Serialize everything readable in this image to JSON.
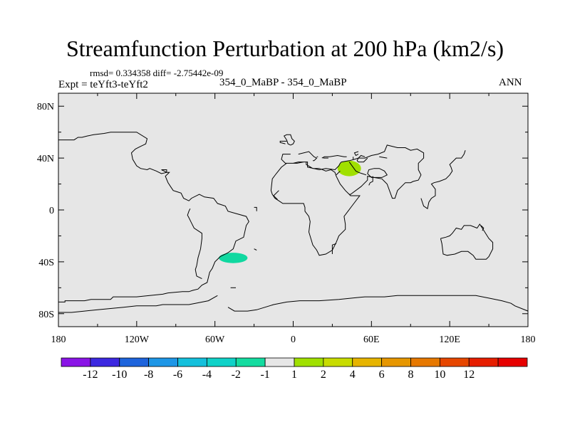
{
  "header": {
    "title": "Streamfunction Perturbation at 200 hPa (km2/s)",
    "stats": "rmsd= 0.334358 diff= -2.75442e-09",
    "expt": "Expt = teYft3-teYft2",
    "case": "354_0_MaBP - 354_0_MaBP",
    "season": "ANN"
  },
  "chart_data": {
    "type": "heatmap",
    "title": "Streamfunction Perturbation at 200 hPa (km2/s)",
    "xlabel": "",
    "ylabel": "",
    "xlim": [
      -180,
      180
    ],
    "ylim": [
      -90,
      90
    ],
    "x_ticks": [
      {
        "value": -180,
        "label": "180"
      },
      {
        "value": -120,
        "label": "120W"
      },
      {
        "value": -60,
        "label": "60W"
      },
      {
        "value": 0,
        "label": "0"
      },
      {
        "value": 60,
        "label": "60E"
      },
      {
        "value": 120,
        "label": "120E"
      },
      {
        "value": 180,
        "label": "180"
      }
    ],
    "y_ticks": [
      {
        "value": 80,
        "label": "80N"
      },
      {
        "value": 40,
        "label": "40N"
      },
      {
        "value": 0,
        "label": "0"
      },
      {
        "value": -40,
        "label": "40S"
      },
      {
        "value": -80,
        "label": "80S"
      }
    ],
    "background_color": "#e6e6e6",
    "anomalies": [
      {
        "name": "positive-anomaly-near-east",
        "lon": 43,
        "lat": 32,
        "lon_halfwidth": 9,
        "lat_halfwidth": 6,
        "level": 2,
        "color": "#a0e000"
      },
      {
        "name": "negative-anomaly-south-atlantic",
        "lon": -46,
        "lat": -37,
        "lon_halfwidth": 11,
        "lat_halfwidth": 4,
        "level": -1.5,
        "color": "#10d8a0"
      }
    ],
    "colorbar": {
      "colors": [
        "#8a14e6",
        "#3c28e0",
        "#1e64dc",
        "#1e96e6",
        "#14c0dc",
        "#10d2c8",
        "#14dca0",
        "#e6e6e6",
        "#a0e000",
        "#c8dc00",
        "#e6b400",
        "#e69600",
        "#e67800",
        "#e64600",
        "#e61e00",
        "#e60000"
      ],
      "labels": [
        "-12",
        "-10",
        "-8",
        "-6",
        "-4",
        "-2",
        "-1",
        "1",
        "2",
        "4",
        "6",
        "8",
        "10",
        "12"
      ]
    },
    "coastlines": [
      [
        [
          -180,
          -71
        ],
        [
          -175,
          -71
        ],
        [
          -175,
          -70
        ],
        [
          -160,
          -70
        ],
        [
          -155,
          -69
        ],
        [
          -140,
          -69
        ],
        [
          -138,
          -67
        ],
        [
          -120,
          -67
        ],
        [
          -110,
          -66
        ],
        [
          -100,
          -65
        ],
        [
          -96,
          -64
        ],
        [
          -85,
          -63
        ],
        [
          -80,
          -63
        ],
        [
          -77,
          -62
        ],
        [
          -73,
          -61
        ],
        [
          -70,
          -58
        ],
        [
          -66,
          -56
        ],
        [
          -64,
          -48
        ],
        [
          -62,
          -45
        ],
        [
          -60,
          -40
        ],
        [
          -56,
          -36
        ],
        [
          -50,
          -33
        ],
        [
          -46,
          -30
        ],
        [
          -44,
          -24
        ],
        [
          -38,
          -21
        ],
        [
          -36,
          -12
        ],
        [
          -34,
          -9
        ],
        [
          -36,
          -5
        ],
        [
          -43,
          -3
        ],
        [
          -50,
          -1
        ],
        [
          -52,
          3
        ],
        [
          -58,
          5
        ],
        [
          -61,
          9
        ],
        [
          -68,
          10
        ],
        [
          -72,
          12
        ],
        [
          -78,
          9
        ],
        [
          -80,
          7
        ],
        [
          -84,
          9
        ],
        [
          -86,
          13
        ],
        [
          -89,
          14
        ],
        [
          -92,
          15
        ],
        [
          -94,
          18
        ],
        [
          -96,
          21
        ],
        [
          -98,
          26
        ],
        [
          -95,
          29
        ],
        [
          -97,
          29
        ],
        [
          -99,
          30
        ],
        [
          -101,
          31
        ],
        [
          -97,
          31
        ],
        [
          -97,
          29
        ],
        [
          -101,
          28
        ],
        [
          -105,
          30
        ],
        [
          -110,
          32
        ],
        [
          -112,
          31
        ],
        [
          -117,
          32
        ],
        [
          -120,
          34
        ],
        [
          -123,
          39
        ],
        [
          -124,
          44
        ],
        [
          -121,
          47
        ],
        [
          -117,
          49
        ],
        [
          -115,
          50
        ],
        [
          -113,
          51
        ],
        [
          -112,
          55
        ],
        [
          -120,
          60
        ],
        [
          -140,
          60
        ],
        [
          -145,
          59
        ],
        [
          -153,
          58
        ],
        [
          -158,
          57
        ],
        [
          -162,
          56
        ],
        [
          -165,
          56
        ],
        [
          -168,
          54
        ],
        [
          -180,
          54
        ]
      ],
      [
        [
          -2,
          43
        ],
        [
          -8,
          43
        ],
        [
          -9,
          39
        ],
        [
          -6,
          36
        ],
        [
          -2,
          36
        ],
        [
          3,
          36
        ],
        [
          8,
          37
        ],
        [
          11,
          37
        ],
        [
          11,
          33
        ],
        [
          20,
          31
        ],
        [
          25,
          32
        ],
        [
          32,
          31
        ],
        [
          35,
          34
        ],
        [
          36,
          36
        ],
        [
          37,
          37
        ],
        [
          43,
          38
        ],
        [
          47,
          39
        ],
        [
          50,
          40
        ],
        [
          55,
          40
        ],
        [
          60,
          42
        ],
        [
          65,
          43
        ],
        [
          70,
          45
        ],
        [
          72,
          50
        ],
        [
          80,
          48
        ],
        [
          86,
          48
        ],
        [
          90,
          46
        ],
        [
          95,
          47
        ],
        [
          100,
          44
        ],
        [
          100,
          40
        ],
        [
          96,
          36
        ],
        [
          96,
          31
        ],
        [
          98,
          27
        ],
        [
          96,
          23
        ],
        [
          92,
          22
        ],
        [
          90,
          21
        ],
        [
          86,
          21
        ],
        [
          83,
          18
        ],
        [
          80,
          15
        ],
        [
          78,
          9
        ],
        [
          76,
          9
        ],
        [
          72,
          20
        ],
        [
          68,
          24
        ],
        [
          62,
          25
        ],
        [
          57,
          26
        ],
        [
          57,
          23
        ],
        [
          52,
          18
        ],
        [
          44,
          12
        ],
        [
          43,
          12
        ],
        [
          40,
          15
        ],
        [
          36,
          20
        ],
        [
          33,
          26
        ],
        [
          32,
          29
        ],
        [
          29,
          31
        ],
        [
          25,
          30
        ],
        [
          20,
          32
        ],
        [
          15,
          32
        ],
        [
          10,
          35
        ],
        [
          10,
          37
        ],
        [
          8,
          37
        ],
        [
          4,
          37
        ],
        [
          0,
          36
        ],
        [
          -5,
          36
        ],
        [
          -9,
          33
        ],
        [
          -13,
          28
        ],
        [
          -16,
          24
        ],
        [
          -17,
          15
        ],
        [
          -16,
          12
        ],
        [
          -14,
          9
        ],
        [
          -11,
          7
        ],
        [
          -8,
          5
        ],
        [
          -3,
          5
        ],
        [
          4,
          5
        ],
        [
          8,
          5
        ],
        [
          9,
          2
        ],
        [
          9,
          -1
        ],
        [
          12,
          -5
        ],
        [
          13,
          -9
        ],
        [
          12,
          -17
        ],
        [
          15,
          -27
        ],
        [
          18,
          -31
        ],
        [
          20,
          -35
        ],
        [
          25,
          -34
        ],
        [
          30,
          -31
        ],
        [
          33,
          -25
        ],
        [
          35,
          -20
        ],
        [
          40,
          -15
        ],
        [
          40,
          -11
        ],
        [
          39,
          -5
        ],
        [
          42,
          -1
        ],
        [
          45,
          3
        ],
        [
          51,
          11
        ],
        [
          44,
          11
        ],
        [
          43,
          12
        ]
      ],
      [
        [
          98,
          9
        ],
        [
          100,
          3
        ],
        [
          103,
          1
        ],
        [
          104,
          6
        ],
        [
          106,
          9
        ],
        [
          109,
          11
        ],
        [
          109,
          16
        ],
        [
          106,
          20
        ],
        [
          108,
          21
        ],
        [
          112,
          22
        ],
        [
          117,
          24
        ],
        [
          120,
          27
        ],
        [
          122,
          30
        ],
        [
          121,
          33
        ],
        [
          120,
          35
        ],
        [
          122,
          37
        ],
        [
          125,
          40
        ],
        [
          129,
          40
        ],
        [
          131,
          43
        ],
        [
          132,
          46
        ]
      ],
      [
        [
          113,
          -22
        ],
        [
          114,
          -26
        ],
        [
          115,
          -34
        ],
        [
          118,
          -35
        ],
        [
          124,
          -34
        ],
        [
          129,
          -32
        ],
        [
          134,
          -32
        ],
        [
          138,
          -35
        ],
        [
          140,
          -38
        ],
        [
          145,
          -38
        ],
        [
          148,
          -38
        ],
        [
          150,
          -36
        ],
        [
          153,
          -30
        ],
        [
          153,
          -25
        ],
        [
          150,
          -22
        ],
        [
          145,
          -14
        ],
        [
          143,
          -11
        ],
        [
          141,
          -14
        ],
        [
          136,
          -12
        ],
        [
          131,
          -12
        ],
        [
          129,
          -15
        ],
        [
          125,
          -14
        ],
        [
          122,
          -18
        ],
        [
          120,
          -20
        ],
        [
          117,
          -21
        ],
        [
          113,
          -22
        ]
      ],
      [
        [
          -2,
          50
        ],
        [
          0,
          51
        ],
        [
          1,
          53
        ],
        [
          -1,
          55
        ],
        [
          -2,
          58
        ],
        [
          -5,
          58
        ],
        [
          -7,
          57
        ],
        [
          -5,
          54
        ],
        [
          -4,
          51
        ],
        [
          -2,
          50
        ]
      ],
      [
        [
          62,
          32
        ],
        [
          58,
          31
        ],
        [
          57,
          28
        ],
        [
          60,
          25
        ],
        [
          68,
          25
        ],
        [
          72,
          27
        ],
        [
          70,
          30
        ],
        [
          66,
          32
        ],
        [
          62,
          32
        ]
      ],
      [
        [
          115,
          -66
        ],
        [
          130,
          -66
        ],
        [
          140,
          -66
        ],
        [
          150,
          -68
        ],
        [
          160,
          -70
        ],
        [
          167,
          -72
        ],
        [
          170,
          -74
        ],
        [
          180,
          -78
        ]
      ],
      [
        [
          -180,
          -79
        ],
        [
          -170,
          -79
        ],
        [
          -160,
          -78
        ],
        [
          -150,
          -77
        ],
        [
          -140,
          -76
        ],
        [
          -130,
          -75
        ],
        [
          -120,
          -74
        ],
        [
          -105,
          -74
        ],
        [
          -100,
          -73
        ],
        [
          -80,
          -73
        ],
        [
          -75,
          -72
        ],
        [
          -65,
          -70
        ],
        [
          -58,
          -66
        ]
      ],
      [
        [
          -50,
          -75
        ],
        [
          -45,
          -78
        ],
        [
          -35,
          -78
        ],
        [
          -28,
          -77
        ],
        [
          -15,
          -73
        ],
        [
          -5,
          -71
        ],
        [
          5,
          -70
        ],
        [
          20,
          -70
        ],
        [
          35,
          -69
        ],
        [
          45,
          -68
        ],
        [
          55,
          -67
        ],
        [
          70,
          -67
        ],
        [
          80,
          -66
        ],
        [
          90,
          -66
        ],
        [
          100,
          -66
        ],
        [
          110,
          -66
        ],
        [
          115,
          -66
        ]
      ],
      [
        [
          -70,
          -53
        ],
        [
          -74,
          -51
        ],
        [
          -75,
          -46
        ],
        [
          -74,
          -43
        ],
        [
          -73,
          -37
        ],
        [
          -71,
          -30
        ],
        [
          -70,
          -22
        ],
        [
          -70,
          -18
        ],
        [
          -76,
          -14
        ],
        [
          -78,
          -10
        ],
        [
          -80,
          -6
        ],
        [
          -81,
          -4
        ],
        [
          -80,
          -1
        ],
        [
          -79,
          1
        ]
      ],
      [
        [
          -30,
          2
        ],
        [
          -28,
          2
        ],
        [
          -28,
          -1
        ]
      ],
      [
        [
          -48,
          -60
        ],
        [
          -44,
          -60
        ]
      ],
      [
        [
          145,
          -16
        ],
        [
          146,
          -14
        ],
        [
          144,
          -12
        ]
      ],
      [
        [
          4,
          43
        ],
        [
          12,
          45
        ],
        [
          13,
          44
        ],
        [
          16,
          41
        ],
        [
          18,
          40
        ],
        [
          16,
          38
        ],
        [
          15,
          38
        ]
      ],
      [
        [
          22,
          40
        ],
        [
          24,
          41
        ],
        [
          26,
          41
        ],
        [
          28,
          41
        ],
        [
          34,
          42
        ],
        [
          39,
          41
        ],
        [
          41,
          41
        ]
      ],
      [
        [
          46,
          41
        ],
        [
          46,
          39
        ]
      ],
      [
        [
          57,
          40
        ],
        [
          54,
          37
        ],
        [
          50,
          37
        ],
        [
          49,
          38
        ],
        [
          50,
          40
        ],
        [
          52,
          42
        ],
        [
          55,
          41
        ]
      ],
      [
        [
          36,
          30
        ],
        [
          34,
          28
        ],
        [
          33,
          27
        ]
      ],
      [
        [
          43,
          37
        ],
        [
          48,
          30
        ],
        [
          50,
          29
        ],
        [
          56,
          27
        ]
      ],
      [
        [
          -5,
          53
        ],
        [
          -10,
          53
        ],
        [
          -10,
          52
        ],
        [
          -6,
          51
        ]
      ],
      [
        [
          -11,
          15
        ],
        [
          -15,
          11
        ],
        [
          -12,
          8
        ]
      ],
      [
        [
          61,
          26
        ],
        [
          61,
          22
        ],
        [
          59,
          21
        ],
        [
          58,
          19
        ]
      ],
      [
        [
          30,
          -34
        ],
        [
          30,
          -27
        ],
        [
          33,
          -26
        ]
      ],
      [
        [
          23,
          40
        ],
        [
          27,
          40
        ]
      ],
      [
        [
          50,
          43
        ],
        [
          48,
          42
        ],
        [
          47,
          44
        ],
        [
          50,
          45
        ]
      ],
      [
        [
          18,
          41
        ],
        [
          19,
          41
        ]
      ],
      [
        [
          -30,
          -30
        ],
        [
          -28,
          -31
        ]
      ],
      [
        [
          66,
          41
        ],
        [
          72,
          40
        ]
      ]
    ]
  }
}
